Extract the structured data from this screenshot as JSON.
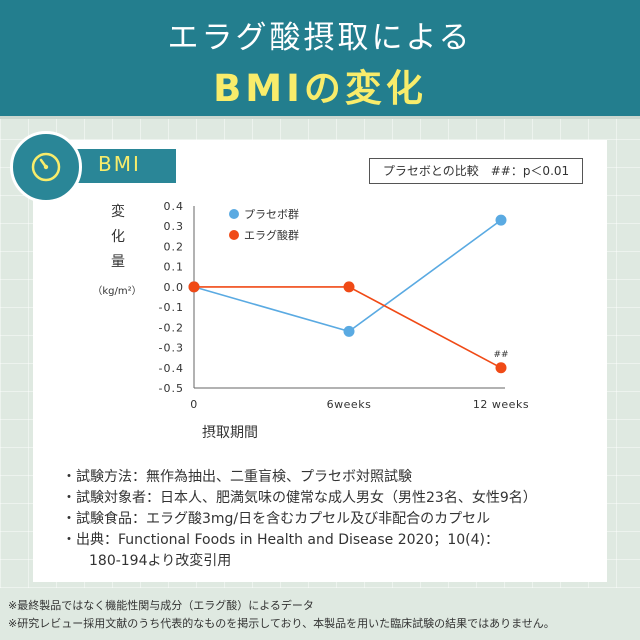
{
  "header": {
    "line1": "エラグ酸摂取による",
    "line2": "BMIの変化",
    "colors": {
      "band": "#237e8e",
      "title": "#ffffff",
      "highlight": "#f8ec6b"
    }
  },
  "badge": {
    "icon": "gauge-icon",
    "label": "BMI"
  },
  "comparison_note": "プラセボとの比較　##：p＜0.01",
  "chart_data": {
    "type": "line",
    "title": "",
    "ylabel_chars": [
      "変",
      "化",
      "量"
    ],
    "y_unit": "（kg/m²）",
    "xlabel": "摂取期間",
    "categories": [
      "0",
      "6weeks",
      "12 weeks"
    ],
    "yticks": [
      "0.4",
      "0.3",
      "0.2",
      "0.1",
      "0.0",
      "-0.1",
      "-0.2",
      "-0.3",
      "-0.4",
      "-0.5"
    ],
    "ylim": [
      -0.5,
      0.4
    ],
    "grid": false,
    "legend_position": "top-left",
    "series": [
      {
        "name": "プラセボ群",
        "color": "#5aaae2",
        "values": [
          0.0,
          -0.22,
          0.33
        ]
      },
      {
        "name": "エラグ酸群",
        "color": "#f04a16",
        "values": [
          0.0,
          0.0,
          -0.4
        ]
      }
    ],
    "annotation": {
      "text": "##",
      "series_index": 1,
      "point_index": 2
    }
  },
  "notes": {
    "lines": [
      "・試験方法：無作為抽出、二重盲検、プラセボ対照試験",
      "・試験対象者：日本人、肥満気味の健常な成人男女（男性23名、女性9名）",
      "・試験食品：エラグ酸3mg/日を含むカプセル及び非配合のカプセル",
      "・出典：Functional Foods in Health and Disease 2020；10(4)："
    ],
    "continuation": "180-194より改変引用"
  },
  "footnotes": [
    "※最終製品ではなく機能性関与成分（エラグ酸）によるデータ",
    "※研究レビュー採用文献のうち代表的なものを掲示しており、本製品を用いた臨床試験の結果ではありません。"
  ]
}
